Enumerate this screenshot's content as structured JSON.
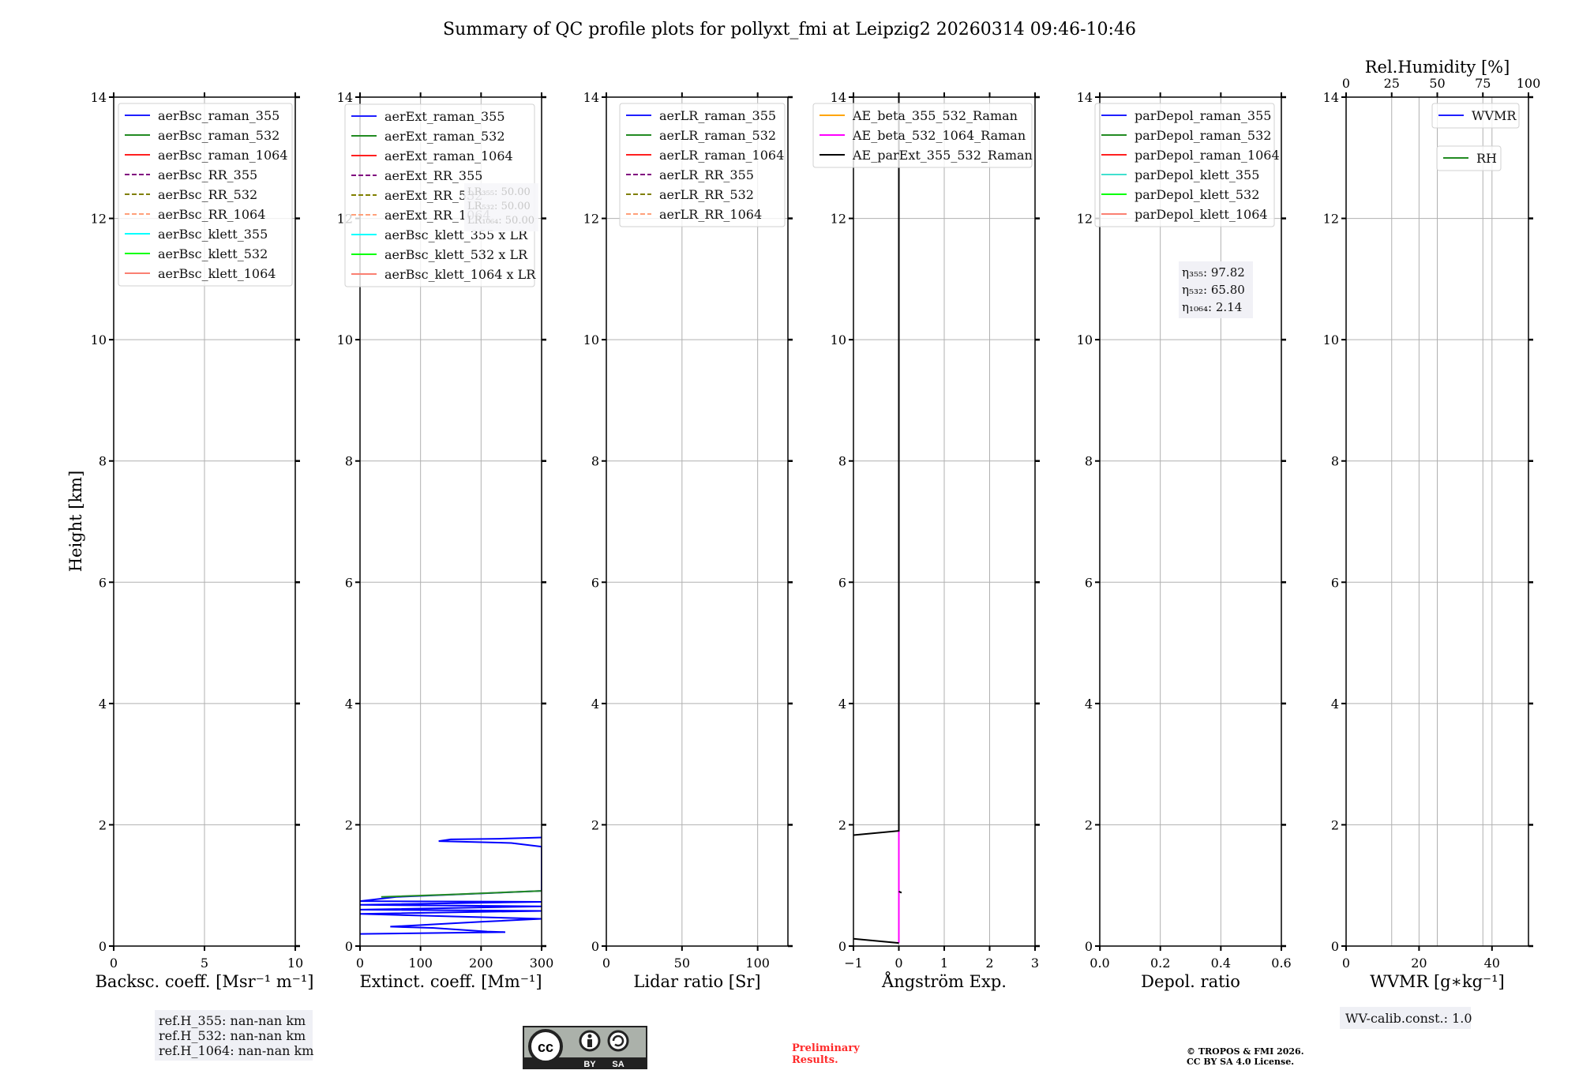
{
  "title": "Summary of QC profile plots for pollyxt_fmi at Leipzig2 20260314 09:46-10:46",
  "ylabel": "Height [km]",
  "ylim": [
    0,
    14
  ],
  "yticks": [
    0,
    2,
    4,
    6,
    8,
    10,
    12,
    14
  ],
  "chart_data": [
    {
      "type": "line",
      "xlabel": "Backsc. coeff. [Msr⁻¹ m⁻¹]",
      "xlim": [
        0,
        10
      ],
      "xticks": [
        0,
        5,
        10
      ],
      "xticklabels": [
        "0",
        "5",
        "10"
      ],
      "legend": [
        {
          "label": "aerBsc_raman_355",
          "color": "#1f1fff",
          "dash": false
        },
        {
          "label": "aerBsc_raman_532",
          "color": "#228b22",
          "dash": false
        },
        {
          "label": "aerBsc_raman_1064",
          "color": "#ff2020",
          "dash": false
        },
        {
          "label": "aerBsc_RR_355",
          "color": "#800080",
          "dash": true
        },
        {
          "label": "aerBsc_RR_532",
          "color": "#808000",
          "dash": true
        },
        {
          "label": "aerBsc_RR_1064",
          "color": "#ffa07a",
          "dash": true
        },
        {
          "label": "aerBsc_klett_355",
          "color": "#00ffff",
          "dash": false
        },
        {
          "label": "aerBsc_klett_532",
          "color": "#00ff00",
          "dash": false
        },
        {
          "label": "aerBsc_klett_1064",
          "color": "#fa8072",
          "dash": false
        }
      ],
      "series": []
    },
    {
      "type": "line",
      "xlabel": "Extinct. coeff. [Mm⁻¹]",
      "xlim": [
        0,
        300
      ],
      "xticks": [
        0,
        100,
        200,
        300
      ],
      "xticklabels": [
        "0",
        "100",
        "200",
        "300"
      ],
      "legend": [
        {
          "label": "aerExt_raman_355",
          "color": "#1f1fff",
          "dash": false
        },
        {
          "label": "aerExt_raman_532",
          "color": "#228b22",
          "dash": false
        },
        {
          "label": "aerExt_raman_1064",
          "color": "#ff2020",
          "dash": false
        },
        {
          "label": "aerExt_RR_355",
          "color": "#800080",
          "dash": true
        },
        {
          "label": "aerExt_RR_532",
          "color": "#808000",
          "dash": true
        },
        {
          "label": "aerExt_RR_1064",
          "color": "#ffa07a",
          "dash": true
        },
        {
          "label": "aerBsc_klett_355 x LR",
          "color": "#00ffff",
          "dash": false
        },
        {
          "label": "aerBsc_klett_532 x LR",
          "color": "#00ff00",
          "dash": false
        },
        {
          "label": "aerBsc_klett_1064 x LR",
          "color": "#fa8072",
          "dash": false
        }
      ],
      "textbox": [
        "LR₃₅₅: 50.00",
        "LR₅₃₂: 50.00",
        "LR₁₀₆₄: 50.00"
      ],
      "series": [
        {
          "name": "aerExt_raman_355",
          "color": "#0000ff",
          "points": [
            [
              300,
              1.79
            ],
            [
              230,
              1.77
            ],
            [
              150,
              1.76
            ],
            [
              130,
              1.73
            ],
            [
              170,
              1.72
            ],
            [
              250,
              1.7
            ],
            [
              300,
              1.64
            ],
            [
              300,
              0.91
            ],
            [
              60,
              0.81
            ],
            [
              0,
              0.74
            ],
            [
              300,
              0.73
            ],
            [
              0,
              0.68
            ],
            [
              300,
              0.655
            ],
            [
              0,
              0.6
            ],
            [
              300,
              0.58
            ],
            [
              0,
              0.53
            ],
            [
              300,
              0.45
            ],
            [
              200,
              0.4
            ],
            [
              50,
              0.32
            ],
            [
              120,
              0.3
            ],
            [
              210,
              0.24
            ],
            [
              240,
              0.23
            ],
            [
              0,
              0.2
            ]
          ]
        },
        {
          "name": "aerExt_raman_532",
          "color": "#228b22",
          "points": [
            [
              35,
              0.81
            ],
            [
              150,
              0.85
            ],
            [
              250,
              0.89
            ],
            [
              300,
              0.91
            ]
          ]
        }
      ]
    },
    {
      "type": "line",
      "xlabel": "Lidar ratio [Sr]",
      "xlim": [
        0,
        120
      ],
      "xticks": [
        0,
        50,
        100
      ],
      "xticklabels": [
        "0",
        "50",
        "100"
      ],
      "legend": [
        {
          "label": "aerLR_raman_355",
          "color": "#1f1fff",
          "dash": false
        },
        {
          "label": "aerLR_raman_532",
          "color": "#228b22",
          "dash": false
        },
        {
          "label": "aerLR_raman_1064",
          "color": "#ff2020",
          "dash": false
        },
        {
          "label": "aerLR_RR_355",
          "color": "#800080",
          "dash": true
        },
        {
          "label": "aerLR_RR_532",
          "color": "#808000",
          "dash": true
        },
        {
          "label": "aerLR_RR_1064",
          "color": "#ffa07a",
          "dash": true
        }
      ],
      "series": []
    },
    {
      "type": "line",
      "xlabel": "Ångström Exp.",
      "xlim": [
        -1,
        3
      ],
      "xticks": [
        -1,
        0,
        1,
        2,
        3
      ],
      "xticklabels": [
        "−1",
        "0",
        "1",
        "2",
        "3"
      ],
      "legend": [
        {
          "label": "AE_beta_355_532_Raman",
          "color": "#ffa500",
          "dash": false
        },
        {
          "label": "AE_beta_532_1064_Raman",
          "color": "#ff00ff",
          "dash": false
        },
        {
          "label": "AE_parExt_355_532_Raman",
          "color": "#000000",
          "dash": false
        }
      ],
      "series": [
        {
          "name": "AE_beta_532_1064_Raman",
          "color": "#ff00ff",
          "points": [
            [
              0,
              0.05
            ],
            [
              0,
              1.9
            ]
          ]
        },
        {
          "name": "AE_parExt_355_532_Raman",
          "color": "#000000",
          "points": [
            [
              -1,
              0.12
            ],
            [
              0,
              0.05
            ]
          ]
        },
        {
          "name": "AE_parExt_355_532_Raman",
          "color": "#000000",
          "points": [
            [
              0,
              0.9
            ],
            [
              0.06,
              0.88
            ]
          ]
        },
        {
          "name": "AE_parExt_355_532_Raman",
          "color": "#000000",
          "points": [
            [
              -1,
              1.83
            ],
            [
              0,
              1.9
            ],
            [
              0,
              14
            ]
          ]
        }
      ]
    },
    {
      "type": "line",
      "xlabel": "Depol. ratio",
      "xlim": [
        0,
        0.6
      ],
      "xticks": [
        0,
        0.2,
        0.4,
        0.6
      ],
      "xticklabels": [
        "0.0",
        "0.2",
        "0.4",
        "0.6"
      ],
      "legend": [
        {
          "label": "parDepol_raman_355",
          "color": "#1f1fff",
          "dash": false
        },
        {
          "label": "parDepol_raman_532",
          "color": "#228b22",
          "dash": false
        },
        {
          "label": "parDepol_raman_1064",
          "color": "#ff2020",
          "dash": false
        },
        {
          "label": "parDepol_klett_355",
          "color": "#40e0d0",
          "dash": false
        },
        {
          "label": "parDepol_klett_532",
          "color": "#00ff00",
          "dash": false
        },
        {
          "label": "parDepol_klett_1064",
          "color": "#fa8072",
          "dash": false
        }
      ],
      "textbox": [
        "η₃₅₅: 97.82",
        "η₅₃₂: 65.80",
        "η₁₀₆₄: 2.14"
      ],
      "series": []
    },
    {
      "type": "line",
      "xlabel": "WVMR [g∗kg⁻¹]",
      "xlim": [
        0,
        50
      ],
      "xticks": [
        0,
        20,
        40
      ],
      "xticklabels": [
        "0",
        "20",
        "40"
      ],
      "legend": [
        {
          "label": "WVMR",
          "color": "#1f1fff",
          "dash": false
        },
        {
          "label": "RH",
          "color": "#228b22",
          "dash": false
        }
      ],
      "top_axis": {
        "label": "Rel.Humidity [%]",
        "xlim": [
          0,
          100
        ],
        "xticks": [
          0,
          25,
          50,
          75,
          100
        ],
        "xticklabels": [
          "0",
          "25",
          "50",
          "75",
          "100"
        ]
      },
      "series": []
    }
  ],
  "footer": {
    "ref_heights": [
      "ref.H_355: nan-nan km",
      "ref.H_532: nan-nan km",
      "ref.H_1064: nan-nan km"
    ],
    "license_badge": {
      "cc": "cc",
      "by": "BY",
      "sa": "SA"
    },
    "preliminary": [
      "Preliminary",
      "Results."
    ],
    "copyright": [
      "© TROPOS & FMI 2026.",
      "CC BY SA 4.0 License."
    ],
    "wv_calib": "WV-calib.const.: 1.0"
  },
  "colors": {
    "grid": "#b0b0b0",
    "textbox_bg": "#eff0f5",
    "preliminary": "#ff2a2a"
  }
}
